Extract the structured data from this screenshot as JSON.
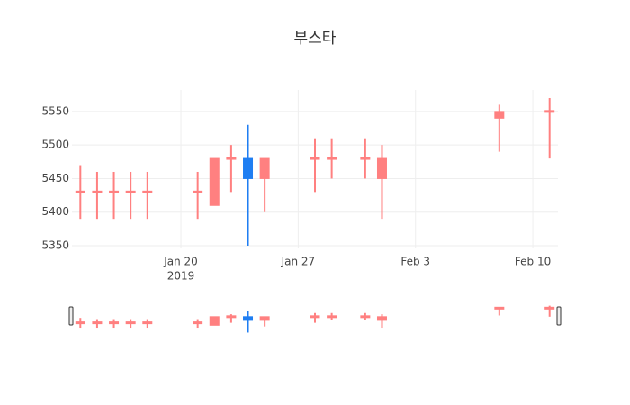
{
  "chart_data": {
    "type": "candlestick",
    "title": "부스타",
    "x": [
      "2019-01-14",
      "2019-01-15",
      "2019-01-16",
      "2019-01-17",
      "2019-01-18",
      "2019-01-21",
      "2019-01-22",
      "2019-01-23",
      "2019-01-24",
      "2019-01-25",
      "2019-01-28",
      "2019-01-29",
      "2019-01-31",
      "2019-02-01",
      "2019-02-08",
      "2019-02-11"
    ],
    "open": [
      5430,
      5430,
      5430,
      5430,
      5430,
      5430,
      5480,
      5480,
      5450,
      5480,
      5480,
      5480,
      5480,
      5480,
      5550,
      5550
    ],
    "high": [
      5470,
      5460,
      5460,
      5460,
      5460,
      5460,
      5480,
      5500,
      5530,
      5480,
      5510,
      5510,
      5510,
      5500,
      5560,
      5570
    ],
    "low": [
      5390,
      5390,
      5390,
      5390,
      5390,
      5390,
      5410,
      5430,
      5350,
      5400,
      5430,
      5450,
      5450,
      5390,
      5490,
      5480
    ],
    "close": [
      5430,
      5430,
      5430,
      5430,
      5430,
      5430,
      5410,
      5480,
      5480,
      5450,
      5480,
      5480,
      5480,
      5450,
      5540,
      5550
    ],
    "increasing_color": "#1f7ef2",
    "decreasing_color": "#ff8080",
    "xlim": [
      "2019-01-13T12:00",
      "2019-02-11T12:00"
    ],
    "xticks": [
      {
        "value": "2019-01-20",
        "label": "Jan 20"
      },
      {
        "value": "2019-01-27",
        "label": "Jan 27"
      },
      {
        "value": "2019-02-03",
        "label": "Feb 3"
      },
      {
        "value": "2019-02-10",
        "label": "Feb 10"
      }
    ],
    "xtick_year": "2019",
    "ylim": [
      5346,
      5582
    ],
    "yticks": [
      5350,
      5400,
      5450,
      5500,
      5550
    ],
    "grid": true,
    "rangeslider": true
  }
}
